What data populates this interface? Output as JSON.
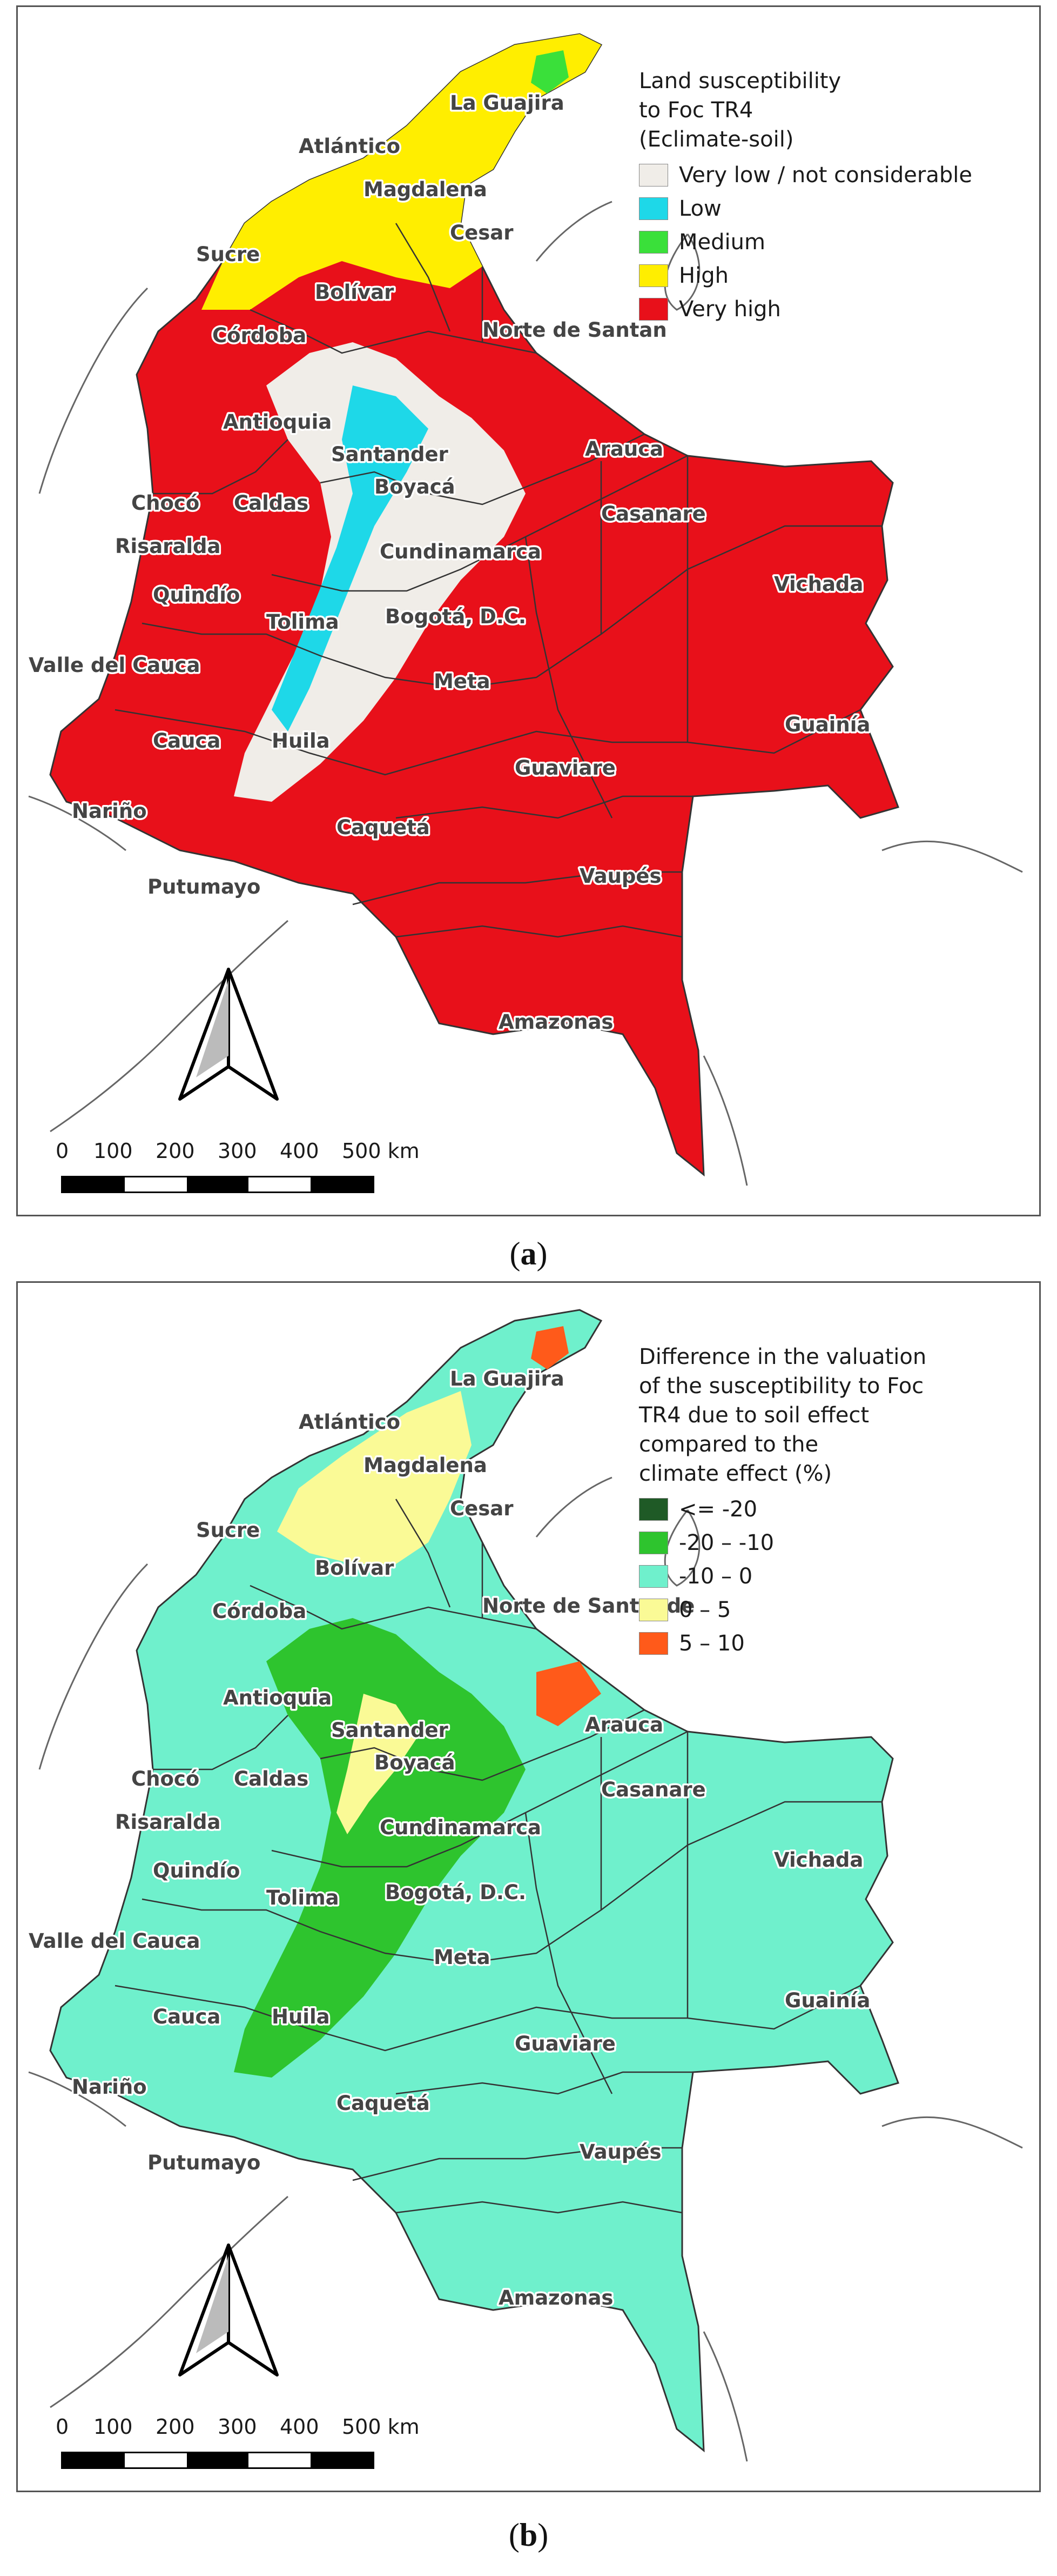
{
  "panels": [
    {
      "id": "a",
      "caption_letter": "a",
      "legend": {
        "title": "Land susceptibility\nto Foc TR4\n(Eclimate-soil)",
        "items": [
          {
            "label": "Very low / not considerable",
            "color": "#f0ede8"
          },
          {
            "label": "Low",
            "color": "#1ed8e8"
          },
          {
            "label": "Medium",
            "color": "#3ae03a"
          },
          {
            "label": "High",
            "color": "#ffee00"
          },
          {
            "label": "Very high",
            "color": "#e8101a"
          }
        ]
      },
      "colors": {
        "land": "#e8101a",
        "north": "#ffee00",
        "andes": "#f0ede8",
        "andes2": "#1ed8e8",
        "patch": "#3ae03a"
      },
      "regions": [
        "La Guajira",
        "Atlántico",
        "Magdalena",
        "Cesar",
        "Sucre",
        "Bolívar",
        "Norte de Santan",
        "Córdoba",
        "Antioquia",
        "Santander",
        "Arauca",
        "Boyacá",
        "Chocó",
        "Caldas",
        "Casanare",
        "Risaralda",
        "Cundinamarca",
        "Vichada",
        "Quindío",
        "Tolima",
        "Bogotá, D.C.",
        "Valle del Cauca",
        "Meta",
        "Guainía",
        "Cauca",
        "Huila",
        "Guaviare",
        "Nariño",
        "Caquetá",
        "Vaupés",
        "Putumayo",
        "Amazonas"
      ],
      "scale": {
        "labels": [
          "0",
          "100",
          "200",
          "300",
          "400",
          "500 km"
        ]
      }
    },
    {
      "id": "b",
      "caption_letter": "b",
      "legend": {
        "title": "Difference in the valuation\nof the susceptibility to Foc\nTR4 due to soil effect\ncompared  to the\nclimate effect (%)",
        "items": [
          {
            "label": "<= -20",
            "color": "#1f5a26"
          },
          {
            "label": "-20 – -10",
            "color": "#2ec42e"
          },
          {
            "label": "-10 – 0",
            "color": "#6ff0cc"
          },
          {
            "label": "0 – 5",
            "color": "#fafa96"
          },
          {
            "label": "5 – 10",
            "color": "#ff5a1a"
          }
        ]
      },
      "colors": {
        "land": "#6ff0cc",
        "north": "#fafa96",
        "andes": "#2ec42e",
        "andes2": "#fafa96",
        "patch": "#ff5a1a"
      },
      "regions": [
        "La Guajira",
        "Atlántico",
        "Magdalena",
        "Cesar",
        "Sucre",
        "Bolívar",
        "Norte de Santande",
        "Córdoba",
        "Antioquia",
        "Santander",
        "Arauca",
        "Boyacá",
        "Chocó",
        "Caldas",
        "Casanare",
        "Risaralda",
        "Cundinamarca",
        "Vichada",
        "Quindío",
        "Tolima",
        "Bogotá, D.C.",
        "Valle del Cauca",
        "Meta",
        "Guainía",
        "Cauca",
        "Huila",
        "Guaviare",
        "Nariño",
        "Caquetá",
        "Vaupés",
        "Putumayo",
        "Amazonas"
      ],
      "scale": {
        "labels": [
          "0",
          "100",
          "200",
          "300",
          "400",
          "500 km"
        ]
      }
    }
  ]
}
